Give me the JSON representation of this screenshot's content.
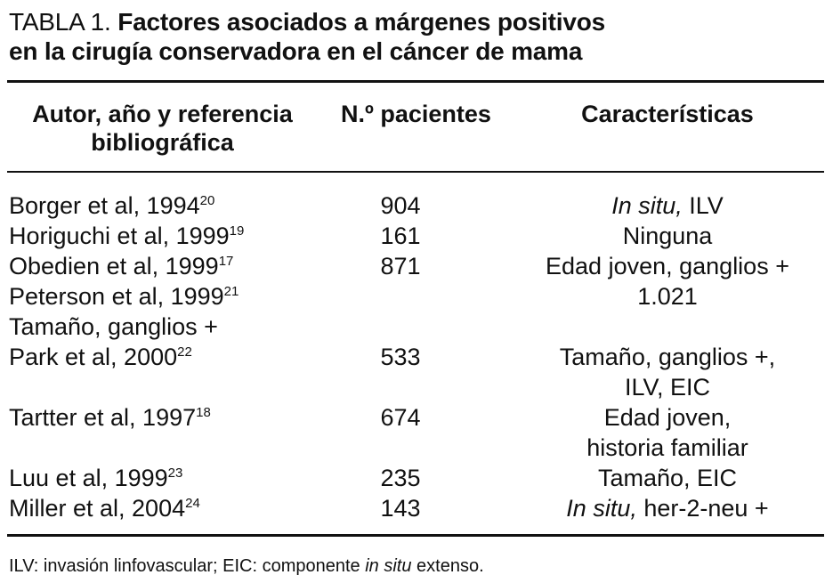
{
  "title": {
    "lead": "TABLA 1.",
    "text_line1": "Factores asociados a márgenes positivos",
    "text_line2": "en la cirugía conservadora en el cáncer de mama"
  },
  "headers": {
    "col1_line1": "Autor, año y referencia",
    "col1_line2": "bibliográfica",
    "col2": "N.º pacientes",
    "col3": "Características"
  },
  "rows": [
    {
      "author": "Borger et al, 1994",
      "ref": "20",
      "n": "904",
      "char_italic": "In situ,",
      "char_rest": " ILV"
    },
    {
      "author": "Horiguchi et al, 1999",
      "ref": "19",
      "n": "161",
      "char": "Ninguna"
    },
    {
      "author": "Obedien et al, 1999",
      "ref": "17",
      "n": "871",
      "char": "Edad joven, ganglios +"
    },
    {
      "author": "Peterson et al, 1999",
      "ref": "21",
      "n": "",
      "char": "1.021"
    },
    {
      "author": "Tamaño, ganglios +",
      "ref": "",
      "n": "",
      "char": ""
    },
    {
      "author": "Park et al, 2000",
      "ref": "22",
      "n": "533",
      "char_line1": "Tamaño, ganglios +,",
      "char_line2": "ILV, EIC"
    },
    {
      "author": "Tartter et al, 1997",
      "ref": "18",
      "n": "674",
      "char_line1": "Edad joven,",
      "char_line2": "historia familiar"
    },
    {
      "author": "Luu et al, 1999",
      "ref": "23",
      "n": "235",
      "char": "Tamaño, EIC"
    },
    {
      "author": "Miller et al, 2004",
      "ref": "24",
      "n": "143",
      "char_italic": "In situ,",
      "char_rest": " her-2-neu +"
    }
  ],
  "footnote": {
    "part1": "ILV: invasión linfovascular; EIC: componente ",
    "italic": "in situ",
    "part2": " extenso."
  }
}
